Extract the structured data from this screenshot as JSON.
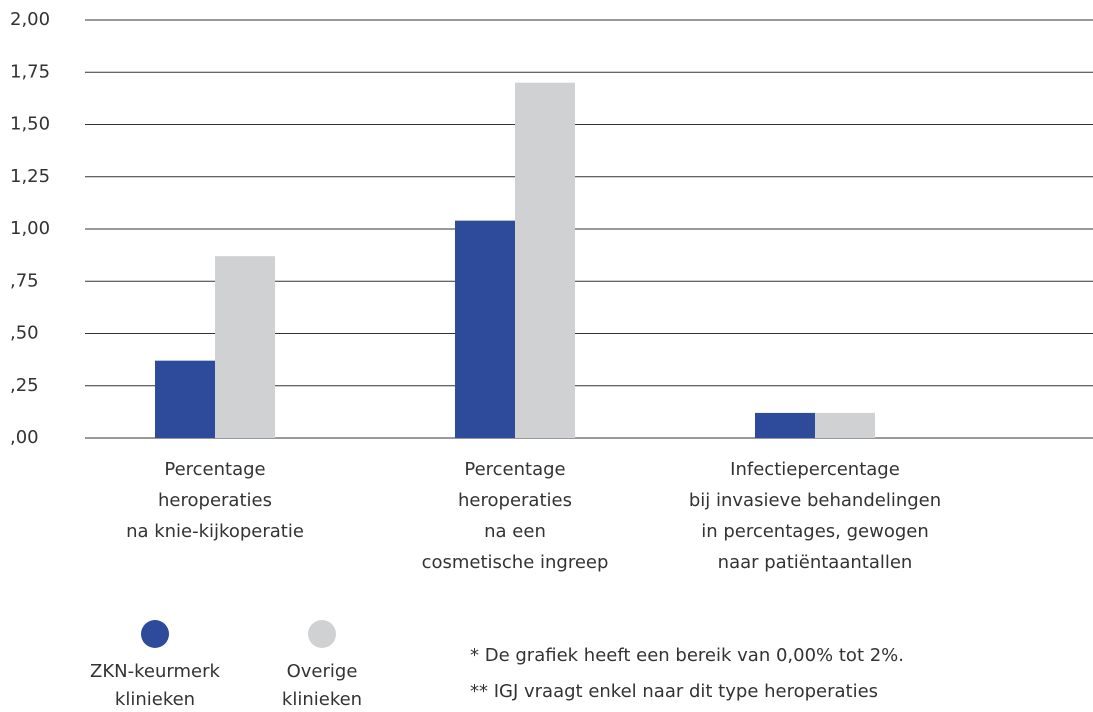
{
  "chart_data": {
    "type": "bar",
    "categories": [
      [
        "Percentage",
        "heroperaties",
        "na knie-kijkoperatie"
      ],
      [
        "Percentage",
        "heroperaties",
        "na een",
        "cosmetische ingreep"
      ],
      [
        "Infectiepercentage",
        "bij invasieve behandelingen",
        "in percentages, gewogen",
        "naar patiëntaantallen"
      ]
    ],
    "series": [
      {
        "name": "ZKN-keurmerk klinieken",
        "color": "#2e4a9b",
        "values": [
          0.37,
          1.04,
          0.12
        ]
      },
      {
        "name": "Overige klinieken",
        "color": "#d0d1d3",
        "values": [
          0.87,
          1.7,
          0.12
        ]
      }
    ],
    "ylim": [
      0,
      2
    ],
    "yticks": [
      {
        "value": 0,
        "label": ",00"
      },
      {
        "value": 0.25,
        "label": ",25"
      },
      {
        "value": 0.5,
        "label": ",50"
      },
      {
        "value": 0.75,
        "label": ",75"
      },
      {
        "value": 1,
        "label": "1,00"
      },
      {
        "value": 1.25,
        "label": "1,25"
      },
      {
        "value": 1.5,
        "label": "1,50"
      },
      {
        "value": 1.75,
        "label": "1,75"
      },
      {
        "value": 2,
        "label": "2,00"
      }
    ],
    "grid": true,
    "annotations": [
      "* De grafiek heeft een bereik van 0,00% tot 2%.",
      "** IGJ vraagt enkel naar dit type heroperaties"
    ]
  }
}
